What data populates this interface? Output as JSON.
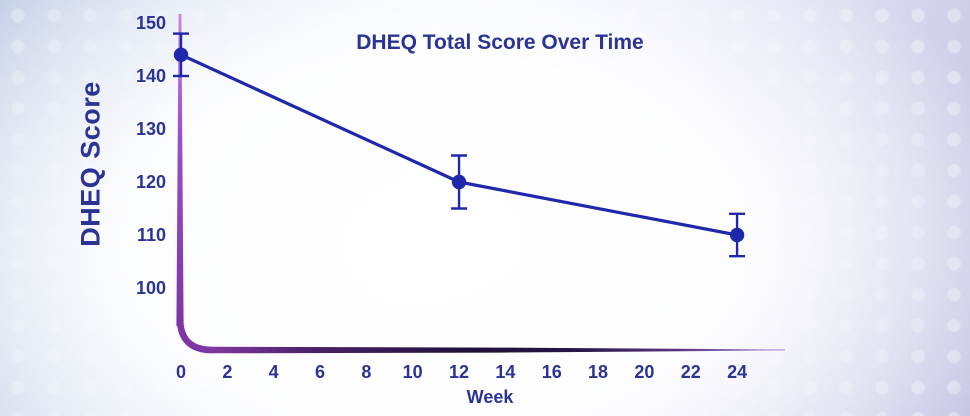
{
  "chart_data": {
    "type": "line",
    "title": "DHEQ Total Score Over Time",
    "xlabel": "Week",
    "ylabel": "DHEQ Score",
    "x": [
      0,
      12,
      24
    ],
    "values": [
      144,
      120,
      110
    ],
    "yerr": [
      4,
      5,
      4
    ],
    "xticks": [
      0,
      2,
      4,
      6,
      8,
      10,
      12,
      14,
      16,
      18,
      20,
      22,
      24
    ],
    "yticks": [
      150,
      140,
      130,
      120,
      110,
      100
    ],
    "xlim": [
      0,
      26
    ],
    "ylim": [
      88,
      152
    ],
    "grid": false,
    "legend": false,
    "series_name": "DHEQ Total Score"
  },
  "colors": {
    "line": "#1f28ab",
    "marker": "#1f28ab",
    "error_bar": "#1f28ab",
    "text": "#2b3494",
    "axis_purple_top": "#c887e2",
    "axis_purple": "#82389f",
    "axis_dark": "#201038",
    "axis_fade_right": "#b492d8",
    "background_edge": "#c6cde6",
    "background_center": "#ffffff"
  }
}
